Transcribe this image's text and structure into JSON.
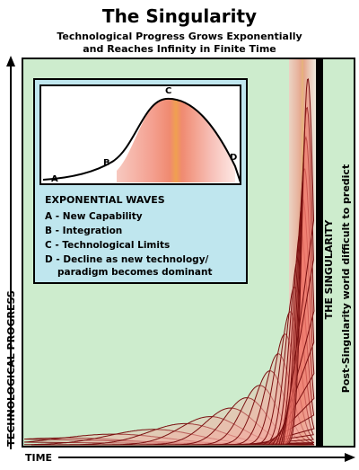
{
  "title": "The Singularity",
  "subtitle": [
    "Technological Progress Grows Exponentially",
    "and Reaches Infinity in Finite Time"
  ],
  "axes": {
    "y": "TECHNOLOGICAL PROGRESS",
    "x": "TIME"
  },
  "singularity": "THE SINGULARITY",
  "post_singularity": "Post-Singularity world difficult to predict",
  "inset": {
    "points": [
      "A",
      "B",
      "C",
      "D"
    ],
    "heading": "EXPONENTIAL WAVES",
    "legend": [
      "A - New Capability",
      "B - Integration",
      "C - Technological Limits",
      "D - Decline as new technology/",
      "paradigm becomes dominant"
    ]
  }
}
